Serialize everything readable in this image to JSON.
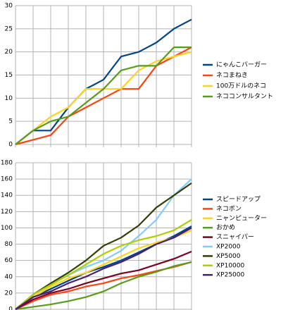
{
  "chart_data": [
    {
      "type": "line",
      "categories": [
        null,
        null,
        null,
        null,
        null,
        null,
        null,
        null,
        null,
        null,
        null
      ],
      "ylim": [
        0,
        30
      ],
      "yticks": [
        0,
        5,
        10,
        15,
        20,
        25,
        30
      ],
      "grid": true,
      "legend": "right",
      "series": [
        {
          "name": "にゃんこバーガー",
          "color": "#004586",
          "values": [
            0,
            3,
            3,
            8,
            12,
            14,
            19,
            20,
            22,
            25,
            27
          ]
        },
        {
          "name": "ネコまねき",
          "color": "#ff420e",
          "values": [
            0,
            1,
            2,
            6,
            8,
            10,
            12,
            12,
            17,
            19,
            21
          ]
        },
        {
          "name": "100万ドルのネコ",
          "color": "#ffd320",
          "values": [
            0,
            3,
            6,
            8,
            12,
            12,
            12,
            16,
            18,
            19,
            20
          ]
        },
        {
          "name": "ネココンサルタント",
          "color": "#579d1c",
          "values": [
            0,
            3,
            5,
            6,
            9,
            12,
            16,
            17,
            17,
            21,
            21
          ]
        }
      ]
    },
    {
      "type": "line",
      "categories": [
        null,
        null,
        null,
        null,
        null,
        null,
        null,
        null,
        null,
        null,
        null
      ],
      "ylim": [
        0,
        180
      ],
      "yticks": [
        0,
        20,
        40,
        60,
        80,
        100,
        120,
        140,
        160,
        180
      ],
      "grid": true,
      "legend": "right",
      "series": [
        {
          "name": "スピードアップ",
          "color": "#004586",
          "values": [
            0,
            15,
            25,
            35,
            45,
            52,
            60,
            70,
            80,
            90,
            102
          ]
        },
        {
          "name": "ネコボン",
          "color": "#ff420e",
          "values": [
            0,
            10,
            18,
            22,
            28,
            32,
            38,
            42,
            47,
            52,
            58
          ]
        },
        {
          "name": "ニャンピューター",
          "color": "#ffd320",
          "values": [
            0,
            15,
            28,
            38,
            45,
            55,
            65,
            75,
            82,
            88,
            97
          ]
        },
        {
          "name": "おかめ",
          "color": "#579d1c",
          "values": [
            0,
            3,
            6,
            10,
            15,
            22,
            32,
            40,
            46,
            53,
            58
          ]
        },
        {
          "name": "スニャイパー",
          "color": "#7e0021",
          "values": [
            0,
            12,
            20,
            25,
            32,
            38,
            44,
            48,
            55,
            62,
            71
          ]
        },
        {
          "name": "XP2000",
          "color": "#83caff",
          "values": [
            0,
            18,
            30,
            42,
            52,
            60,
            72,
            90,
            110,
            140,
            160
          ]
        },
        {
          "name": "XP5000",
          "color": "#314004",
          "values": [
            0,
            18,
            32,
            45,
            60,
            78,
            88,
            103,
            125,
            140,
            155
          ]
        },
        {
          "name": "XP10000",
          "color": "#aecf00",
          "values": [
            0,
            18,
            30,
            42,
            55,
            68,
            78,
            85,
            90,
            97,
            110
          ]
        },
        {
          "name": "XP25000",
          "color": "#4b1f6f",
          "values": [
            0,
            15,
            22,
            32,
            40,
            50,
            58,
            68,
            80,
            88,
            100
          ]
        }
      ]
    }
  ]
}
